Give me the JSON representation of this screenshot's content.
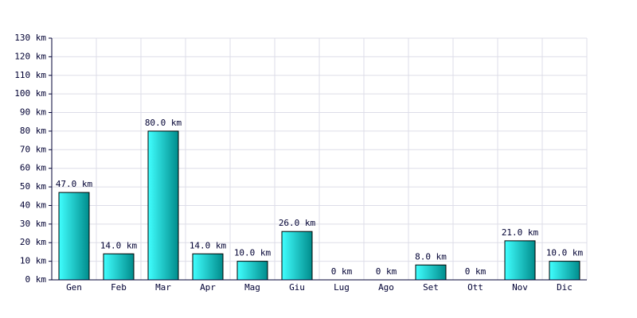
{
  "chart_data": {
    "type": "bar",
    "categories": [
      "Gen",
      "Feb",
      "Mar",
      "Apr",
      "Mag",
      "Giu",
      "Lug",
      "Ago",
      "Set",
      "Ott",
      "Nov",
      "Dic"
    ],
    "values": [
      47,
      14,
      80,
      14,
      10,
      26,
      0,
      0,
      8,
      0,
      21,
      10
    ],
    "value_labels": [
      "47.0 km",
      "14.0 km",
      "80.0 km",
      "14.0 km",
      "10.0 km",
      "26.0 km",
      "0 km",
      "0 km",
      "8.0 km",
      "0 km",
      "21.0 km",
      "10.0 km"
    ],
    "color": "#00c8c8",
    "ylim": [
      0,
      130
    ],
    "yticks": [
      {
        "value": 0,
        "label": "0 km"
      },
      {
        "value": 10,
        "label": "10 km"
      },
      {
        "value": 20,
        "label": "20 km"
      },
      {
        "value": 30,
        "label": "30 km"
      },
      {
        "value": 40,
        "label": "40 km"
      },
      {
        "value": 50,
        "label": "50 km"
      },
      {
        "value": 60,
        "label": "60 km"
      },
      {
        "value": 70,
        "label": "70 km"
      },
      {
        "value": 80,
        "label": "80 km"
      },
      {
        "value": 90,
        "label": "90 km"
      },
      {
        "value": 100,
        "label": "100 km"
      },
      {
        "value": 110,
        "label": "110 km"
      },
      {
        "value": 120,
        "label": "120 km"
      },
      {
        "value": 130,
        "label": "130 km"
      }
    ],
    "grid": true
  }
}
